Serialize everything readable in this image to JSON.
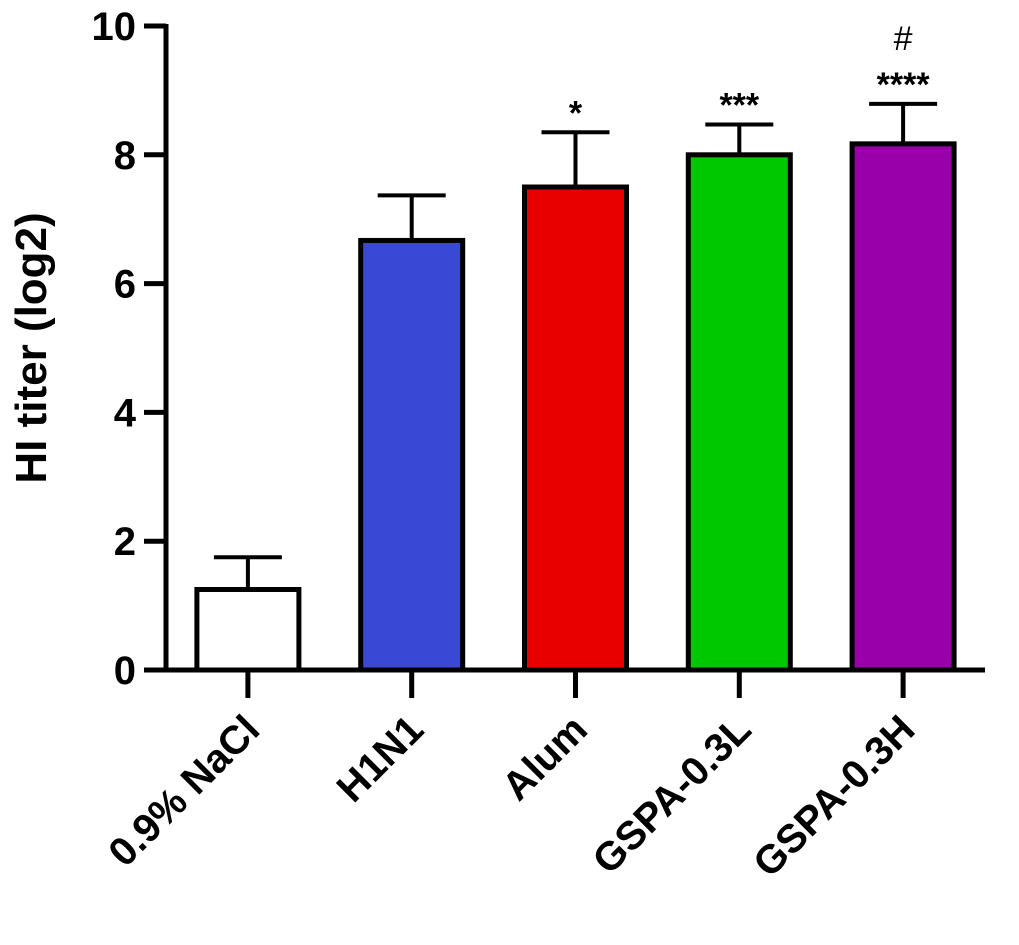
{
  "chart_data": {
    "type": "bar",
    "title": "",
    "xlabel": "",
    "ylabel": "HI titer (log2)",
    "ylim": [
      0,
      10
    ],
    "yticks": [
      "0",
      "2",
      "4",
      "6",
      "8",
      "10"
    ],
    "grid": false,
    "categories": [
      "0.9% NaCl",
      "H1N1",
      "Alum",
      "GSPA-0.3L",
      "GSPA-0.3H"
    ],
    "values": [
      1.25,
      6.67,
      7.5,
      8.0,
      8.17
    ],
    "error": [
      0.5,
      0.7,
      0.85,
      0.47,
      0.62
    ],
    "colors": [
      "#ffffff",
      "#3a48d6",
      "#e80000",
      "#00c800",
      "#9900aa"
    ],
    "significance": [
      "",
      "",
      "*",
      "***",
      "****"
    ],
    "significance_secondary": [
      "",
      "",
      "",
      "",
      "#"
    ]
  }
}
